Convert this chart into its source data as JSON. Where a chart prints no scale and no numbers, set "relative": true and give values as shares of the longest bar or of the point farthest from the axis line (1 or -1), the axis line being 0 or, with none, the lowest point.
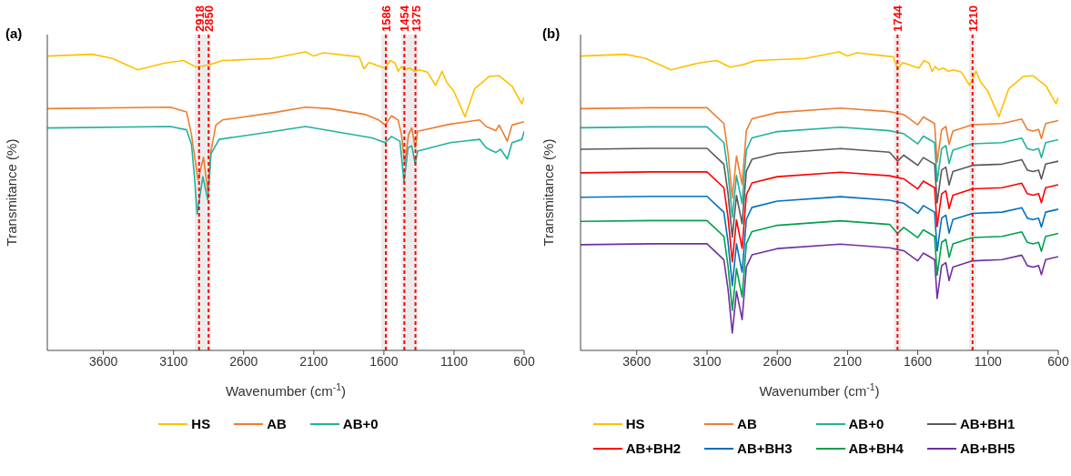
{
  "chart_data": [
    {
      "type": "line",
      "title": "(a)",
      "xlabel": "Wavenumber (cm$^{-1}$)",
      "ylabel": "Transmitance (%)",
      "relative": true,
      "xlim": [
        4000,
        600
      ],
      "xticks": [
        3600,
        3100,
        2600,
        2100,
        1600,
        1100,
        600
      ],
      "grid": false,
      "legend": "bottom",
      "marker": "none",
      "line_style": "solid",
      "ref_lines": [
        {
          "axis": "x",
          "value": 2918,
          "label": "2918",
          "color": "#ff0000",
          "line_style": "dashed"
        },
        {
          "axis": "x",
          "value": 2850,
          "label": "2850",
          "color": "#ff0000",
          "line_style": "dashed"
        },
        {
          "axis": "x",
          "value": 1586,
          "label": "1586",
          "color": "#ff0000",
          "line_style": "dashed"
        },
        {
          "axis": "x",
          "value": 1454,
          "label": "1454",
          "color": "#ff0000",
          "line_style": "dashed"
        },
        {
          "axis": "x",
          "value": 1375,
          "label": "1375",
          "color": "#ff0000",
          "line_style": "dashed"
        }
      ],
      "bands": [
        {
          "axis": "x",
          "from": 2949,
          "to": 2833,
          "color": "#ececec"
        },
        {
          "axis": "x",
          "from": 1619,
          "to": 1568,
          "color": "#ececec"
        },
        {
          "axis": "x",
          "from": 1475,
          "to": 1359,
          "color": "#ececec"
        }
      ],
      "series": [
        {
          "name": "HS",
          "color": "#ffc000",
          "x": [
            4000,
            3680,
            3540,
            3355,
            3169,
            3030,
            2937,
            2891,
            2844,
            2751,
            2403,
            2159,
            2101,
            2032,
            1823,
            1776,
            1742,
            1707,
            1660,
            1614,
            1591,
            1556,
            1521,
            1498,
            1475,
            1452,
            1417,
            1382,
            1347,
            1289,
            1231,
            1185,
            1150,
            1103,
            1022,
            953,
            848,
            778,
            686,
            616,
            600
          ],
          "values": [
            0.986,
            0.992,
            0.979,
            0.94,
            0.962,
            0.971,
            0.949,
            0.953,
            0.957,
            0.971,
            0.978,
            1.0,
            0.986,
            0.997,
            0.986,
            0.984,
            0.943,
            0.964,
            0.957,
            0.949,
            0.946,
            0.971,
            0.963,
            0.935,
            0.951,
            0.94,
            0.946,
            0.935,
            0.94,
            0.932,
            0.888,
            0.935,
            0.897,
            0.87,
            0.783,
            0.876,
            0.918,
            0.92,
            0.885,
            0.826,
            0.848
          ]
        },
        {
          "name": "AB",
          "color": "#ed7d31",
          "x": [
            4000,
            3123,
            3007,
            2972,
            2949,
            2925,
            2886,
            2856,
            2833,
            2798,
            2751,
            2380,
            2159,
            1985,
            1730,
            1637,
            1591,
            1545,
            1498,
            1475,
            1452,
            1424,
            1401,
            1377,
            1359,
            1127,
            918,
            871,
            802,
            778,
            720,
            686,
            600
          ],
          "values": [
            0.81,
            0.815,
            0.799,
            0.723,
            0.647,
            0.571,
            0.647,
            0.533,
            0.668,
            0.755,
            0.772,
            0.797,
            0.815,
            0.81,
            0.79,
            0.772,
            0.755,
            0.786,
            0.772,
            0.723,
            0.625,
            0.723,
            0.745,
            0.679,
            0.734,
            0.758,
            0.772,
            0.75,
            0.736,
            0.755,
            0.701,
            0.755,
            0.766
          ]
        },
        {
          "name": "AB+0",
          "color": "#20b2a0",
          "x": [
            4000,
            3123,
            3007,
            2972,
            2949,
            2932,
            2891,
            2856,
            2833,
            2775,
            2380,
            2159,
            1684,
            1591,
            1545,
            1486,
            1456,
            1428,
            1401,
            1377,
            1359,
            1127,
            918,
            871,
            837,
            802,
            767,
            720,
            686,
            616,
            600
          ],
          "values": [
            0.745,
            0.75,
            0.739,
            0.69,
            0.571,
            0.457,
            0.582,
            0.505,
            0.658,
            0.707,
            0.734,
            0.75,
            0.712,
            0.696,
            0.717,
            0.701,
            0.565,
            0.679,
            0.685,
            0.625,
            0.668,
            0.696,
            0.707,
            0.679,
            0.671,
            0.663,
            0.674,
            0.641,
            0.696,
            0.707,
            0.734
          ]
        }
      ]
    },
    {
      "type": "line",
      "title": "(b)",
      "xlabel": "Wavenumber (cm$^{-1}$)",
      "ylabel": "Transmitance (%)",
      "relative": true,
      "xlim": [
        4000,
        600
      ],
      "xticks": [
        3600,
        3100,
        2600,
        2100,
        1600,
        1100,
        600
      ],
      "grid": false,
      "legend": "bottom",
      "marker": "none",
      "line_style": "solid",
      "ref_lines": [
        {
          "axis": "x",
          "value": 1744,
          "label": "1744",
          "color": "#ff0000",
          "line_style": "dashed"
        },
        {
          "axis": "x",
          "value": 1210,
          "label": "1210",
          "color": "#ff0000",
          "line_style": "dashed"
        }
      ],
      "bands": [
        {
          "axis": "x",
          "from": 1770,
          "to": 1720,
          "color": "#ececec"
        },
        {
          "axis": "x",
          "from": 1235,
          "to": 1185,
          "color": "#ececec"
        }
      ],
      "x": [
        4000,
        3500,
        3100,
        2980,
        2950,
        2920,
        2890,
        2850,
        2820,
        2780,
        2600,
        2150,
        1800,
        1744,
        1700,
        1600,
        1560,
        1480,
        1462,
        1430,
        1400,
        1377,
        1350,
        1210,
        1000,
        860,
        820,
        780,
        740,
        720,
        690,
        600
      ],
      "series": [
        {
          "name": "HS",
          "color": "#ffc000",
          "x": [
            4000,
            3680,
            3540,
            3355,
            3169,
            3030,
            2937,
            2891,
            2844,
            2751,
            2403,
            2159,
            2101,
            2032,
            1823,
            1776,
            1742,
            1707,
            1660,
            1614,
            1591,
            1556,
            1521,
            1498,
            1475,
            1452,
            1417,
            1382,
            1347,
            1289,
            1231,
            1185,
            1150,
            1103,
            1022,
            953,
            848,
            778,
            686,
            616,
            600
          ],
          "values": [
            0.986,
            0.992,
            0.979,
            0.94,
            0.962,
            0.971,
            0.949,
            0.953,
            0.957,
            0.971,
            0.978,
            1.0,
            0.986,
            0.997,
            0.986,
            0.984,
            0.943,
            0.964,
            0.957,
            0.949,
            0.946,
            0.971,
            0.963,
            0.935,
            0.951,
            0.94,
            0.946,
            0.935,
            0.94,
            0.932,
            0.888,
            0.935,
            0.897,
            0.87,
            0.783,
            0.876,
            0.918,
            0.92,
            0.885,
            0.826,
            0.848
          ]
        },
        {
          "name": "AB",
          "color": "#ed7d31",
          "values": [
            0.81,
            0.813,
            0.813,
            0.76,
            0.66,
            0.511,
            0.651,
            0.556,
            0.736,
            0.776,
            0.797,
            0.812,
            0.8,
            0.794,
            0.79,
            0.756,
            0.782,
            0.76,
            0.63,
            0.74,
            0.75,
            0.69,
            0.735,
            0.756,
            0.76,
            0.775,
            0.74,
            0.735,
            0.74,
            0.71,
            0.76,
            0.77
          ]
        },
        {
          "name": "AB+0",
          "color": "#20b2a0",
          "values": [
            0.746,
            0.749,
            0.749,
            0.696,
            0.596,
            0.446,
            0.586,
            0.491,
            0.672,
            0.712,
            0.733,
            0.748,
            0.736,
            0.73,
            0.726,
            0.692,
            0.718,
            0.696,
            0.566,
            0.676,
            0.686,
            0.626,
            0.671,
            0.692,
            0.696,
            0.711,
            0.676,
            0.671,
            0.676,
            0.646,
            0.696,
            0.706
          ]
        },
        {
          "name": "AB+BH1",
          "color": "#595959",
          "values": [
            0.674,
            0.677,
            0.677,
            0.624,
            0.524,
            0.379,
            0.519,
            0.424,
            0.6,
            0.64,
            0.661,
            0.676,
            0.664,
            0.634,
            0.654,
            0.62,
            0.646,
            0.624,
            0.494,
            0.604,
            0.614,
            0.554,
            0.599,
            0.62,
            0.624,
            0.639,
            0.604,
            0.599,
            0.604,
            0.574,
            0.624,
            0.634
          ]
        },
        {
          "name": "AB+BH2",
          "color": "#ff0000",
          "values": [
            0.595,
            0.598,
            0.598,
            0.545,
            0.445,
            0.297,
            0.437,
            0.342,
            0.521,
            0.561,
            0.582,
            0.597,
            0.585,
            0.579,
            0.575,
            0.541,
            0.567,
            0.545,
            0.415,
            0.525,
            0.535,
            0.475,
            0.52,
            0.541,
            0.545,
            0.56,
            0.525,
            0.52,
            0.525,
            0.495,
            0.545,
            0.555
          ]
        },
        {
          "name": "AB+BH3",
          "color": "#0070c0",
          "values": [
            0.513,
            0.516,
            0.516,
            0.463,
            0.363,
            0.217,
            0.357,
            0.262,
            0.439,
            0.479,
            0.5,
            0.515,
            0.503,
            0.497,
            0.493,
            0.459,
            0.485,
            0.463,
            0.333,
            0.443,
            0.453,
            0.393,
            0.438,
            0.459,
            0.463,
            0.478,
            0.443,
            0.438,
            0.443,
            0.413,
            0.463,
            0.473
          ]
        },
        {
          "name": "AB+BH4",
          "color": "#00a04b",
          "values": [
            0.432,
            0.435,
            0.435,
            0.382,
            0.282,
            0.134,
            0.274,
            0.179,
            0.358,
            0.398,
            0.419,
            0.434,
            0.422,
            0.392,
            0.412,
            0.378,
            0.404,
            0.382,
            0.252,
            0.362,
            0.372,
            0.312,
            0.357,
            0.378,
            0.382,
            0.397,
            0.362,
            0.357,
            0.362,
            0.332,
            0.382,
            0.392
          ]
        },
        {
          "name": "AB+BH5",
          "color": "#7030a0",
          "values": [
            0.354,
            0.357,
            0.357,
            0.304,
            0.204,
            0.058,
            0.198,
            0.103,
            0.28,
            0.32,
            0.341,
            0.356,
            0.344,
            0.338,
            0.334,
            0.3,
            0.326,
            0.304,
            0.174,
            0.284,
            0.294,
            0.234,
            0.279,
            0.3,
            0.304,
            0.319,
            0.284,
            0.279,
            0.284,
            0.254,
            0.304,
            0.314
          ]
        }
      ]
    }
  ]
}
